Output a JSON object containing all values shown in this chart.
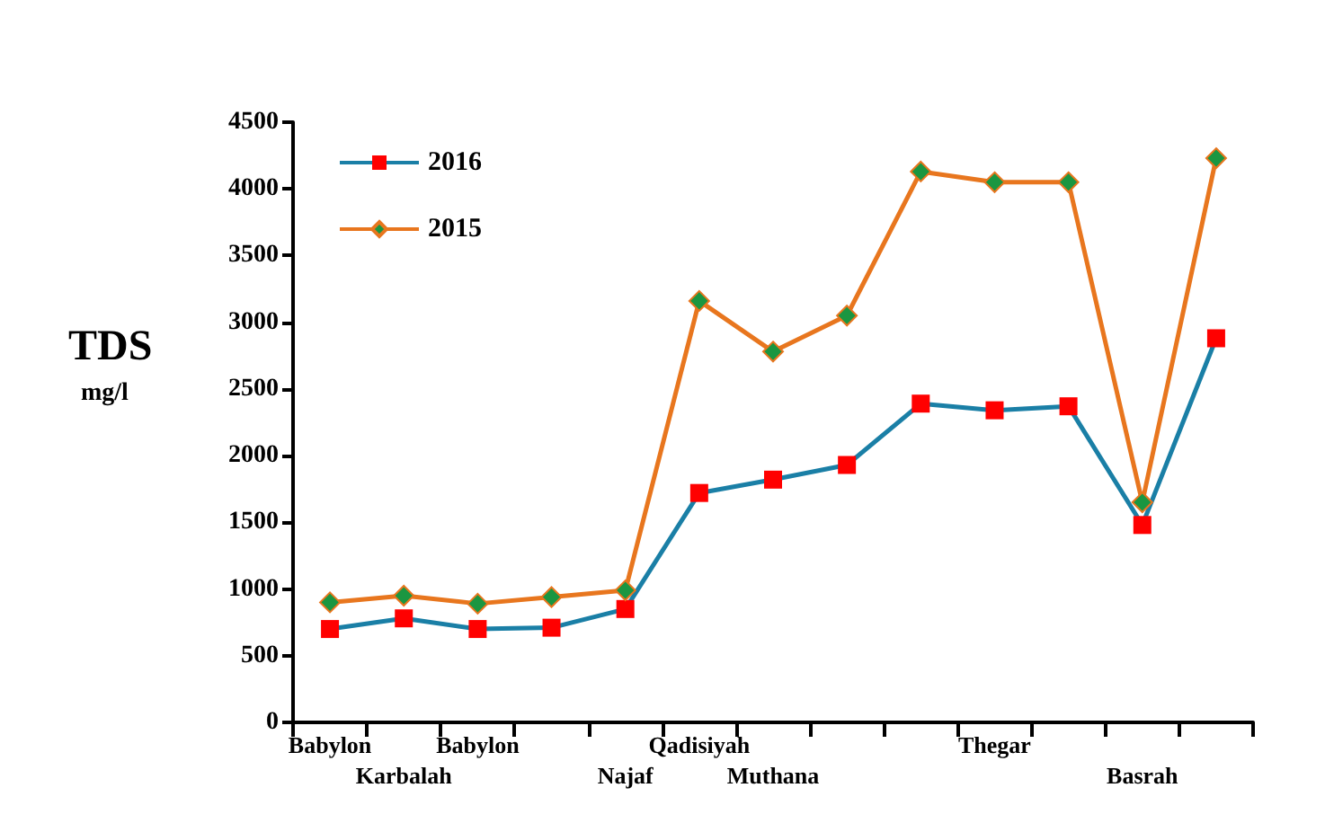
{
  "chart_data": {
    "type": "line",
    "ylabel": "TDS\nmg/l",
    "categories": [
      "Babylon",
      "Karbalah",
      "Babylon",
      null,
      "Najaf",
      "Qadisiyah",
      "Muthana",
      null,
      null,
      "Thegar",
      null,
      "Basrah",
      null
    ],
    "series": [
      {
        "name": "2016",
        "color": "#1a7fa6",
        "marker": "square",
        "values": [
          700,
          780,
          700,
          710,
          850,
          1720,
          1820,
          1930,
          2390,
          2340,
          2370,
          1480,
          2880
        ]
      },
      {
        "name": "2015",
        "color": "#e8761e",
        "marker": "diamond",
        "values": [
          900,
          950,
          890,
          940,
          990,
          3160,
          2780,
          3050,
          4130,
          4050,
          4050,
          1650,
          4230
        ]
      }
    ],
    "ylim": [
      0,
      4500
    ],
    "yticks": [
      0,
      500,
      1000,
      1500,
      2000,
      2500,
      3000,
      3500,
      4000,
      4500
    ],
    "grid": false,
    "legend": "top left"
  }
}
